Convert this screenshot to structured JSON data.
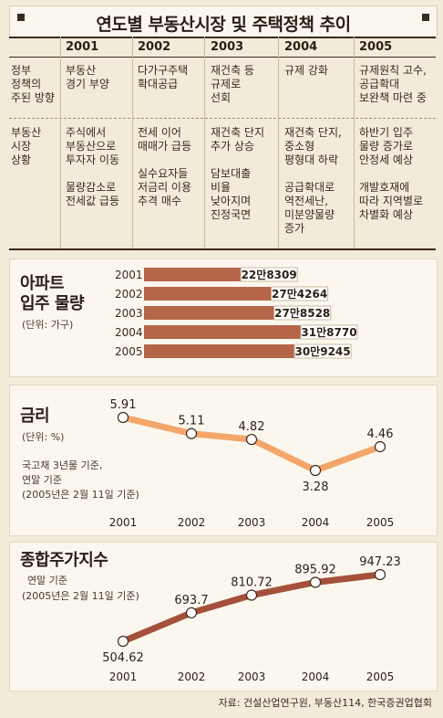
{
  "title": "연도별 부동산시장 및 주택정책 추이",
  "table": {
    "years": [
      "2001",
      "2002",
      "2003",
      "2004",
      "2005"
    ],
    "rows": [
      {
        "label": "정부\n정책의\n주된 방향",
        "cells": [
          "부동산\n경기 부양",
          "다가구주택\n확대공급",
          "재건축 등\n규제로\n선회",
          "규제 강화",
          "규제원칙 고수,\n공급확대\n보완책 마련 중"
        ]
      },
      {
        "label": "부동산\n시장\n상황",
        "cells": [
          "주식에서\n부동산으로\n투자자 이동\n\n물량감소로\n전세값 급등",
          "전세 이어\n매매가 급등\n\n실수요자들\n저금리 이용\n추격 매수",
          "재건축 단지\n추가 상승\n\n담보대출\n비율\n낮아지며\n진정국면",
          "재건축 단지,\n중소형\n평형대 하락\n\n공급확대로\n역전세난,\n미분양물량\n증가",
          "하반기 입주\n물량 증가로\n안정세 예상\n\n개발호재에\n따라 지역별로\n차별화 예상"
        ]
      }
    ]
  },
  "panels": {
    "supply": {
      "title_line1": "아파트",
      "title_line2": "입주 물량",
      "unit": "(단위: 가구)"
    },
    "rate": {
      "title": "금리",
      "unit": "(단위: %)",
      "note1": "국고채 3년물 기준,",
      "note2": "연말 기준",
      "note3": "(2005년은 2월 11일 기준)"
    },
    "kospi": {
      "title": "종합주가지수",
      "note1": "연말 기준",
      "note2": "(2005년은 2월 11일 기준)"
    }
  },
  "chart_data": [
    {
      "type": "bar",
      "orientation": "horizontal",
      "title": "아파트 입주 물량",
      "unit": "가구",
      "categories": [
        "2001",
        "2002",
        "2003",
        "2004",
        "2005"
      ],
      "values": [
        228309,
        274264,
        278528,
        318770,
        309245
      ],
      "labels": [
        "22만8309",
        "27만4264",
        "27만8528",
        "31만8770",
        "30만9245"
      ],
      "color": "#b5654a"
    },
    {
      "type": "line",
      "title": "금리",
      "unit": "%",
      "x": [
        "2001",
        "2002",
        "2003",
        "2004",
        "2005"
      ],
      "values": [
        5.91,
        5.11,
        4.82,
        3.28,
        4.46
      ],
      "labels": [
        "5.91",
        "5.11",
        "4.82",
        "3.28",
        "4.46"
      ],
      "color": "#f4a56a"
    },
    {
      "type": "line",
      "title": "종합주가지수",
      "x": [
        "2001",
        "2002",
        "2003",
        "2004",
        "2005"
      ],
      "values": [
        504.62,
        693.7,
        810.72,
        895.92,
        947.23
      ],
      "labels": [
        "504.62",
        "693.7",
        "810.72",
        "895.92",
        "947.23"
      ],
      "color": "#a5503a"
    }
  ],
  "source": "자료: 건설산업연구원, 부동산114, 한국증권업협회"
}
